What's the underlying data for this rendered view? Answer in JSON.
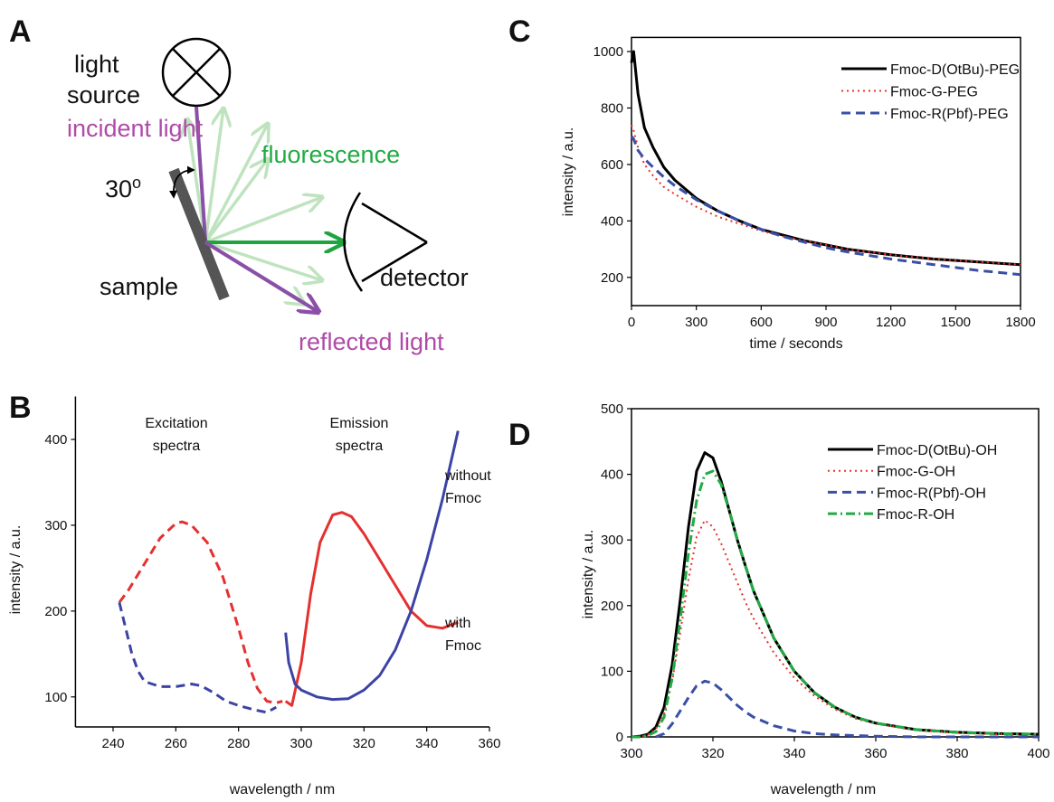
{
  "diagram": {
    "label": "A",
    "light_source": [
      "light",
      "source"
    ],
    "incident": "incident light",
    "fluorescence": "fluorescence",
    "angle": "30",
    "angle_sup": "o",
    "sample": "sample",
    "detector": "detector",
    "reflected": "reflected light"
  },
  "chart_data": [
    {
      "type": "line",
      "label": "C",
      "xlabel": "time / seconds",
      "ylabel": "intensity / a.u.",
      "box": true,
      "legend": "upper right",
      "x": [
        0,
        10,
        30,
        60,
        100,
        150,
        200,
        300,
        400,
        500,
        600,
        700,
        800,
        900,
        1000,
        1200,
        1400,
        1600,
        1800
      ],
      "series": [
        {
          "name": "Fmoc-D(OtBu)-PEG",
          "color": "#000000",
          "style": "solid",
          "width": 3,
          "values": [
            960,
            1000,
            850,
            730,
            660,
            590,
            545,
            480,
            435,
            400,
            370,
            350,
            330,
            315,
            300,
            280,
            265,
            255,
            245
          ]
        },
        {
          "name": "Fmoc-G-PEG",
          "color": "#e8332a",
          "style": "dotted",
          "width": 2,
          "values": [
            740,
            720,
            660,
            600,
            560,
            520,
            495,
            450,
            415,
            390,
            365,
            345,
            330,
            315,
            300,
            280,
            265,
            255,
            245
          ]
        },
        {
          "name": "Fmoc-R(Pbf)-PEG",
          "color": "#3a4fa5",
          "style": "dashed",
          "width": 3,
          "values": [
            700,
            690,
            650,
            620,
            590,
            555,
            525,
            475,
            435,
            400,
            370,
            345,
            325,
            305,
            290,
            265,
            245,
            225,
            210
          ]
        }
      ],
      "xlim": [
        0,
        1800
      ],
      "ylim": [
        100,
        1050
      ],
      "xticks": [
        0,
        300,
        600,
        900,
        1200,
        1500,
        1800
      ],
      "yticks": [
        200,
        400,
        600,
        800,
        1000
      ]
    },
    {
      "type": "line",
      "label": "B",
      "xlabel": "wavelength / nm",
      "ylabel": "intensity / a.u.",
      "box": false,
      "series": [
        {
          "color": "#e53030",
          "style": "dashed",
          "width": 3,
          "x": [
            242,
            245,
            250,
            255,
            260,
            262,
            265,
            270,
            275,
            280,
            283,
            286,
            289,
            292,
            294
          ],
          "values": [
            210,
            225,
            255,
            285,
            302,
            304,
            300,
            280,
            240,
            180,
            140,
            110,
            95,
            93,
            95
          ]
        },
        {
          "color": "#e53030",
          "style": "solid",
          "width": 3,
          "x": [
            295,
            297,
            300,
            303,
            306,
            310,
            313,
            316,
            320,
            325,
            330,
            335,
            340,
            345,
            350
          ],
          "values": [
            95,
            90,
            140,
            220,
            280,
            312,
            315,
            310,
            290,
            260,
            230,
            200,
            183,
            180,
            187
          ]
        },
        {
          "color": "#3c43a5",
          "style": "dashed",
          "width": 3,
          "x": [
            242,
            244,
            246,
            248,
            250,
            255,
            260,
            265,
            268,
            272,
            276,
            280,
            285,
            289,
            292
          ],
          "values": [
            210,
            180,
            150,
            130,
            118,
            112,
            112,
            115,
            113,
            105,
            95,
            90,
            85,
            82,
            88
          ]
        },
        {
          "color": "#3c43a5",
          "style": "solid",
          "width": 3,
          "x": [
            295,
            296,
            298,
            300,
            305,
            310,
            315,
            320,
            325,
            330,
            335,
            340,
            345,
            350
          ],
          "values": [
            175,
            140,
            115,
            108,
            100,
            97,
            98,
            108,
            125,
            155,
            200,
            260,
            330,
            410
          ]
        }
      ],
      "annotations": [
        {
          "lines": [
            "Excitation",
            "spectra"
          ],
          "color": "#222222"
        },
        {
          "lines": [
            "Emission",
            "spectra"
          ],
          "color": "#222222"
        },
        {
          "lines": [
            "without",
            "Fmoc"
          ],
          "color": "#3c43a5"
        },
        {
          "lines": [
            "with",
            "Fmoc"
          ],
          "color": "#e53030"
        }
      ],
      "xlim": [
        228,
        360
      ],
      "ylim": [
        65,
        450
      ],
      "xticks": [
        240,
        260,
        280,
        300,
        320,
        340,
        360
      ],
      "yticks": [
        100,
        200,
        300,
        400
      ]
    },
    {
      "type": "line",
      "label": "D",
      "xlabel": "wavelength / nm",
      "ylabel": "intensity / a.u.",
      "box": true,
      "legend": "upper right",
      "x": [
        300,
        302,
        304,
        306,
        308,
        310,
        312,
        314,
        316,
        318,
        320,
        322,
        324,
        326,
        328,
        330,
        335,
        340,
        345,
        350,
        355,
        360,
        370,
        380,
        390,
        400
      ],
      "series": [
        {
          "name": "Fmoc-D(OtBu)-OH",
          "color": "#000000",
          "style": "solid",
          "width": 3,
          "values": [
            0,
            1,
            4,
            15,
            45,
            110,
            210,
            320,
            405,
            433,
            425,
            390,
            345,
            300,
            260,
            222,
            150,
            100,
            67,
            45,
            30,
            21,
            11,
            7,
            5,
            4
          ]
        },
        {
          "name": "Fmoc-G-OH",
          "color": "#e8332a",
          "style": "dotted",
          "width": 2,
          "values": [
            0,
            0,
            3,
            12,
            35,
            85,
            160,
            240,
            305,
            330,
            320,
            295,
            265,
            235,
            205,
            180,
            128,
            90,
            62,
            42,
            28,
            20,
            10,
            6,
            4,
            3
          ]
        },
        {
          "name": "Fmoc-R(Pbf)-OH",
          "color": "#3a4fa5",
          "style": "dashed",
          "width": 3,
          "values": [
            null,
            null,
            null,
            0,
            5,
            20,
            40,
            60,
            78,
            85,
            82,
            72,
            60,
            48,
            38,
            30,
            17,
            9,
            5,
            3,
            2,
            1,
            0,
            0,
            0,
            0
          ]
        },
        {
          "name": "Fmoc-R-OH",
          "color": "#22aa44",
          "style": "dashdot",
          "width": 3,
          "values": [
            0,
            0,
            2,
            8,
            30,
            90,
            180,
            280,
            360,
            400,
            405,
            385,
            345,
            300,
            260,
            222,
            150,
            100,
            67,
            45,
            30,
            21,
            11,
            7,
            5,
            4
          ]
        }
      ],
      "xlim": [
        300,
        400
      ],
      "ylim": [
        0,
        500
      ],
      "xticks": [
        300,
        320,
        340,
        360,
        380,
        400
      ],
      "yticks": [
        0,
        100,
        200,
        300,
        400,
        500
      ]
    }
  ]
}
